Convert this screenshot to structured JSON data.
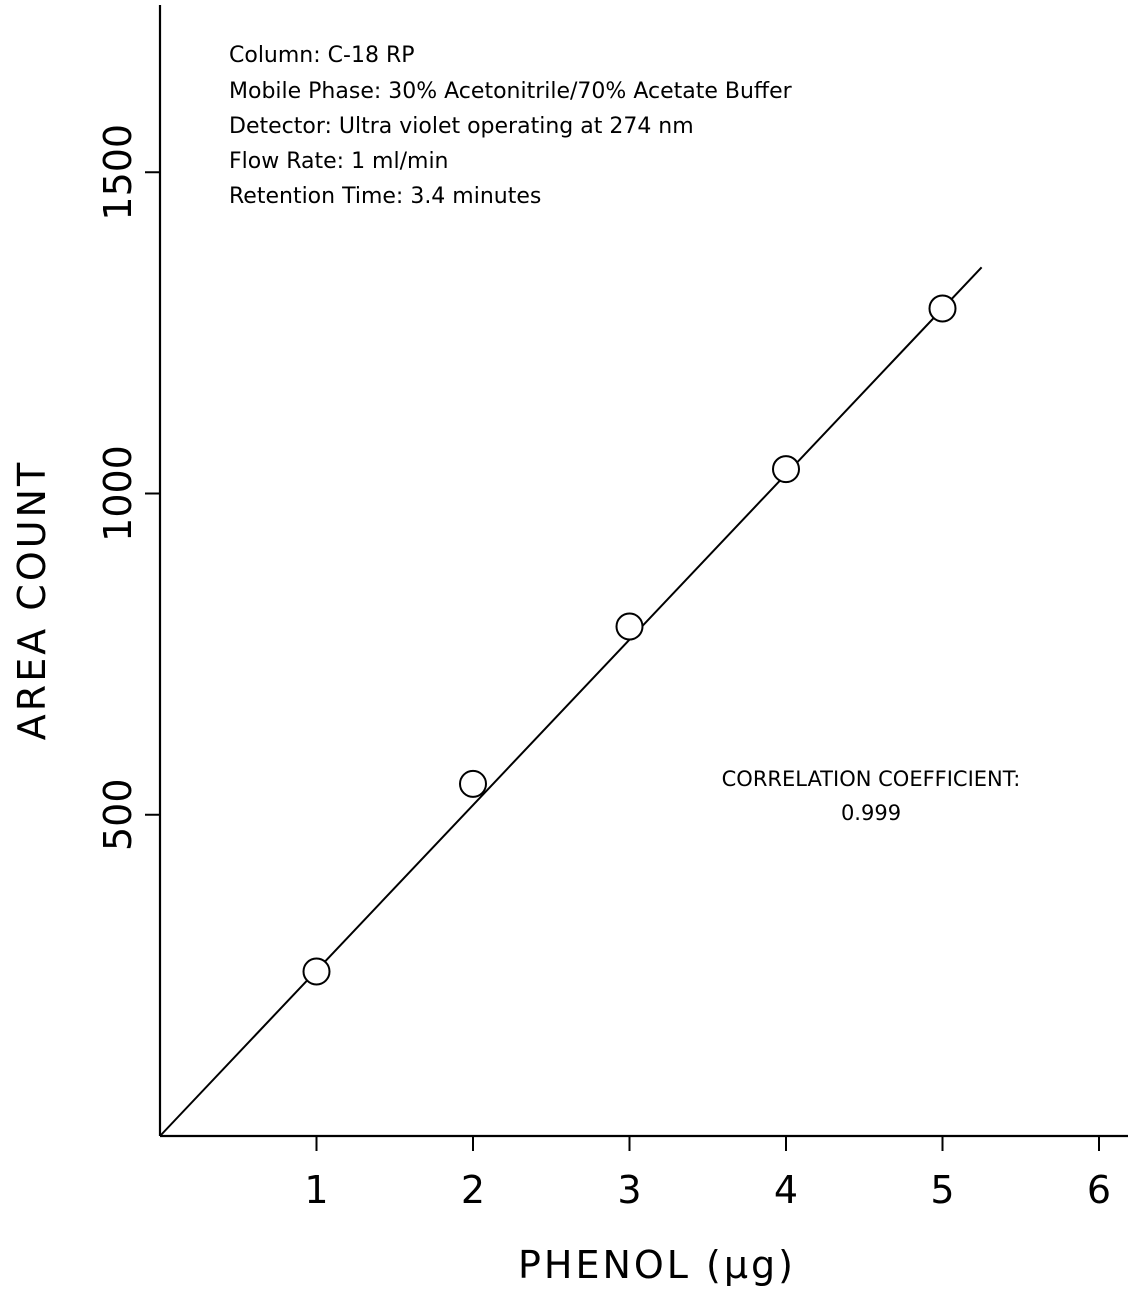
{
  "chart_data": {
    "type": "scatter",
    "title": "",
    "xlabel": "PHENOL (μg)",
    "ylabel": "AREA COUNT",
    "xlim": [
      0,
      6.2
    ],
    "ylim": [
      0,
      1760
    ],
    "xticks": [
      1,
      2,
      3,
      4,
      5,
      6
    ],
    "yticks": [
      500,
      1000,
      1500
    ],
    "grid": false,
    "series": [
      {
        "x": [
          1,
          2,
          3,
          4,
          5
        ],
        "y": [
          256,
          548,
          793,
          1038,
          1288
        ],
        "marker": "open-circle"
      }
    ],
    "fit_line": {
      "x": [
        0,
        5.25
      ],
      "y": [
        0,
        1352
      ]
    },
    "annotations": {
      "conditions": [
        "Column: C-18 RP",
        "Mobile Phase: 30% Acetonitrile/70% Acetate Buffer",
        "Detector: Ultra violet operating at 274 nm",
        "Flow Rate: 1 ml/min",
        "Retention Time: 3.4 minutes"
      ],
      "correlation_label": "CORRELATION COEFFICIENT:",
      "correlation_value": "0.999"
    }
  }
}
